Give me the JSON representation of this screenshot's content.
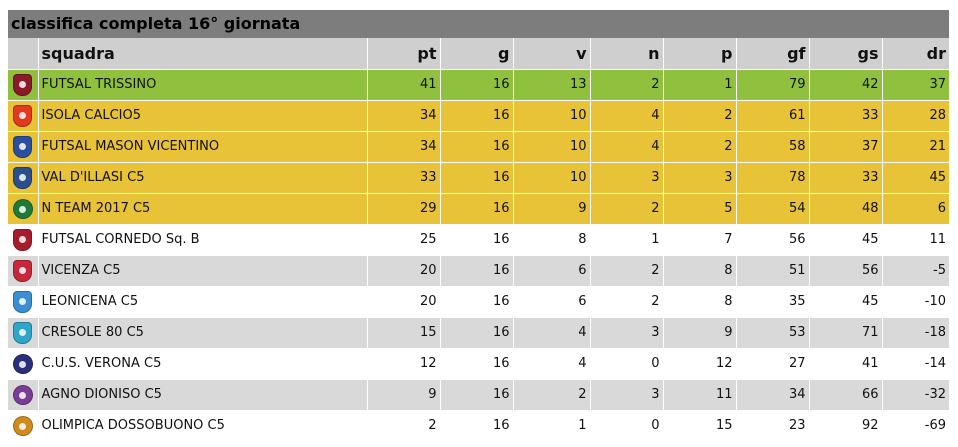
{
  "title": "classifica completa 16° giornata",
  "columns": {
    "team": "squadra",
    "pt": "pt",
    "g": "g",
    "v": "v",
    "n": "n",
    "p": "p",
    "gf": "gf",
    "gs": "gs",
    "dr": "dr"
  },
  "colors": {
    "title_bar": "#7d7d7d",
    "header_row": "#cfcfcf",
    "green_row": "#8fc13f",
    "gold_row": "#e8c237",
    "gray_row": "#d9d9d9",
    "white_row": "#ffffff"
  },
  "rows": [
    {
      "logo_icon": "futsal-trissino-logo-icon",
      "logo_color": "#8b1a2b",
      "round": false,
      "style": "green",
      "team": "FUTSAL TRISSINO",
      "pt": "41",
      "g": "16",
      "v": "13",
      "n": "2",
      "p": "1",
      "gf": "79",
      "gs": "42",
      "dr": "37"
    },
    {
      "logo_icon": "isola-calcio5-logo-icon",
      "logo_color": "#e23a1f",
      "round": false,
      "style": "gold",
      "team": "ISOLA CALCIO5",
      "pt": "34",
      "g": "16",
      "v": "10",
      "n": "4",
      "p": "2",
      "gf": "61",
      "gs": "33",
      "dr": "28"
    },
    {
      "logo_icon": "futsal-mason-vicentino-logo-icon",
      "logo_color": "#2a4fa0",
      "round": false,
      "style": "gold",
      "team": "FUTSAL MASON VICENTINO",
      "pt": "34",
      "g": "16",
      "v": "10",
      "n": "4",
      "p": "2",
      "gf": "58",
      "gs": "37",
      "dr": "21"
    },
    {
      "logo_icon": "val-dillasi-c5-logo-icon",
      "logo_color": "#2b4f8e",
      "round": false,
      "style": "gold",
      "team": "VAL D'ILLASI C5",
      "pt": "33",
      "g": "16",
      "v": "10",
      "n": "3",
      "p": "3",
      "gf": "78",
      "gs": "33",
      "dr": "45"
    },
    {
      "logo_icon": "n-team-2017-c5-logo-icon",
      "logo_color": "#1f7a3a",
      "round": true,
      "style": "gold",
      "team": "N TEAM 2017 C5",
      "pt": "29",
      "g": "16",
      "v": "9",
      "n": "2",
      "p": "5",
      "gf": "54",
      "gs": "48",
      "dr": "6"
    },
    {
      "logo_icon": "futsal-cornedo-logo-icon",
      "logo_color": "#a51e2d",
      "round": false,
      "style": "white",
      "team": "FUTSAL CORNEDO Sq. B",
      "pt": "25",
      "g": "16",
      "v": "8",
      "n": "1",
      "p": "7",
      "gf": "56",
      "gs": "45",
      "dr": "11"
    },
    {
      "logo_icon": "vicenza-c5-logo-icon",
      "logo_color": "#c8283c",
      "round": false,
      "style": "gray",
      "team": "VICENZA C5",
      "pt": "20",
      "g": "16",
      "v": "6",
      "n": "2",
      "p": "8",
      "gf": "51",
      "gs": "56",
      "dr": "-5"
    },
    {
      "logo_icon": "leonicena-c5-logo-icon",
      "logo_color": "#3a8fd0",
      "round": false,
      "style": "white",
      "team": "LEONICENA C5",
      "pt": "20",
      "g": "16",
      "v": "6",
      "n": "2",
      "p": "8",
      "gf": "35",
      "gs": "45",
      "dr": "-10"
    },
    {
      "logo_icon": "cresole-80-c5-logo-icon",
      "logo_color": "#2fa6c9",
      "round": false,
      "style": "gray",
      "team": "CRESOLE 80 C5",
      "pt": "15",
      "g": "16",
      "v": "4",
      "n": "3",
      "p": "9",
      "gf": "53",
      "gs": "71",
      "dr": "-18"
    },
    {
      "logo_icon": "cus-verona-c5-logo-icon",
      "logo_color": "#2a2f7a",
      "round": true,
      "style": "white",
      "team": "C.U.S. VERONA C5",
      "pt": "12",
      "g": "16",
      "v": "4",
      "n": "0",
      "p": "12",
      "gf": "27",
      "gs": "41",
      "dr": "-14"
    },
    {
      "logo_icon": "agno-dioniso-c5-logo-icon",
      "logo_color": "#7a3c94",
      "round": true,
      "style": "gray",
      "team": "AGNO DIONISO C5",
      "pt": "9",
      "g": "16",
      "v": "2",
      "n": "3",
      "p": "11",
      "gf": "34",
      "gs": "66",
      "dr": "-32"
    },
    {
      "logo_icon": "olimpica-dossobuono-c5-logo-icon",
      "logo_color": "#d08a1e",
      "round": true,
      "style": "white",
      "team": "OLIMPICA DOSSOBUONO C5",
      "pt": "2",
      "g": "16",
      "v": "1",
      "n": "0",
      "p": "15",
      "gf": "23",
      "gs": "92",
      "dr": "-69"
    }
  ]
}
